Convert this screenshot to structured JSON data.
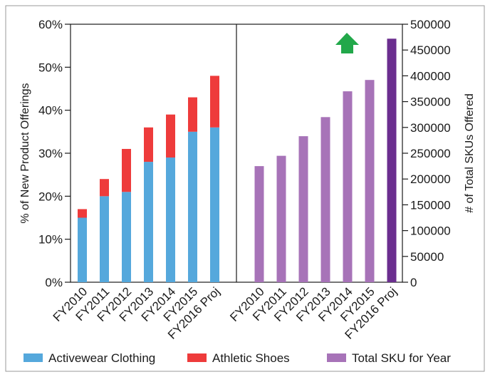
{
  "colors": {
    "activewear": "#55a8dc",
    "athletic_shoes": "#ee3b3b",
    "total_sku": "#a773b8",
    "total_sku_projected": "#6b2e8f",
    "arrow": "#22a84a",
    "axis": "#1a1a1a"
  },
  "chart_data": {
    "type": "bar",
    "panels": [
      {
        "id": "product-offerings",
        "stacked": true,
        "categories": [
          "FY2010",
          "FY2011",
          "FY2012",
          "FY2013",
          "FY2014",
          "FY2015",
          "FY2016 Proj"
        ],
        "series": [
          {
            "name": "Activewear Clothing",
            "values": [
              15,
              20,
              21,
              28,
              29,
              35,
              36
            ]
          },
          {
            "name": "Athletic Shoes",
            "values": [
              2,
              4,
              10,
              8,
              10,
              8,
              12
            ]
          }
        ],
        "ylabel": "% of New Product Offerings",
        "ylim": [
          0,
          60
        ],
        "yticks": [
          "0%",
          "10%",
          "20%",
          "30%",
          "40%",
          "50%",
          "60%"
        ]
      },
      {
        "id": "total-sku",
        "stacked": false,
        "categories": [
          "FY2010",
          "FY2011",
          "FY2012",
          "FY2013",
          "FY2014",
          "FY2015",
          "FY2016 Proj"
        ],
        "series": [
          {
            "name": "Total SKU for Year",
            "values": [
              225000,
              245000,
              283000,
              320000,
              370000,
              392000,
              472000
            ]
          }
        ],
        "ylabel": "# of Total SKUs Offered",
        "ylim": [
          0,
          500000
        ],
        "yticks": [
          "0",
          "50000",
          "100000",
          "150000",
          "200000",
          "250000",
          "300000",
          "350000",
          "400000",
          "450000",
          "500000"
        ],
        "highlight_last": true,
        "annotation": "up-arrow-icon"
      }
    ],
    "legend": {
      "position": "bottom",
      "entries": [
        "Activewear Clothing",
        "Athletic Shoes",
        "Total SKU for Year"
      ]
    }
  }
}
